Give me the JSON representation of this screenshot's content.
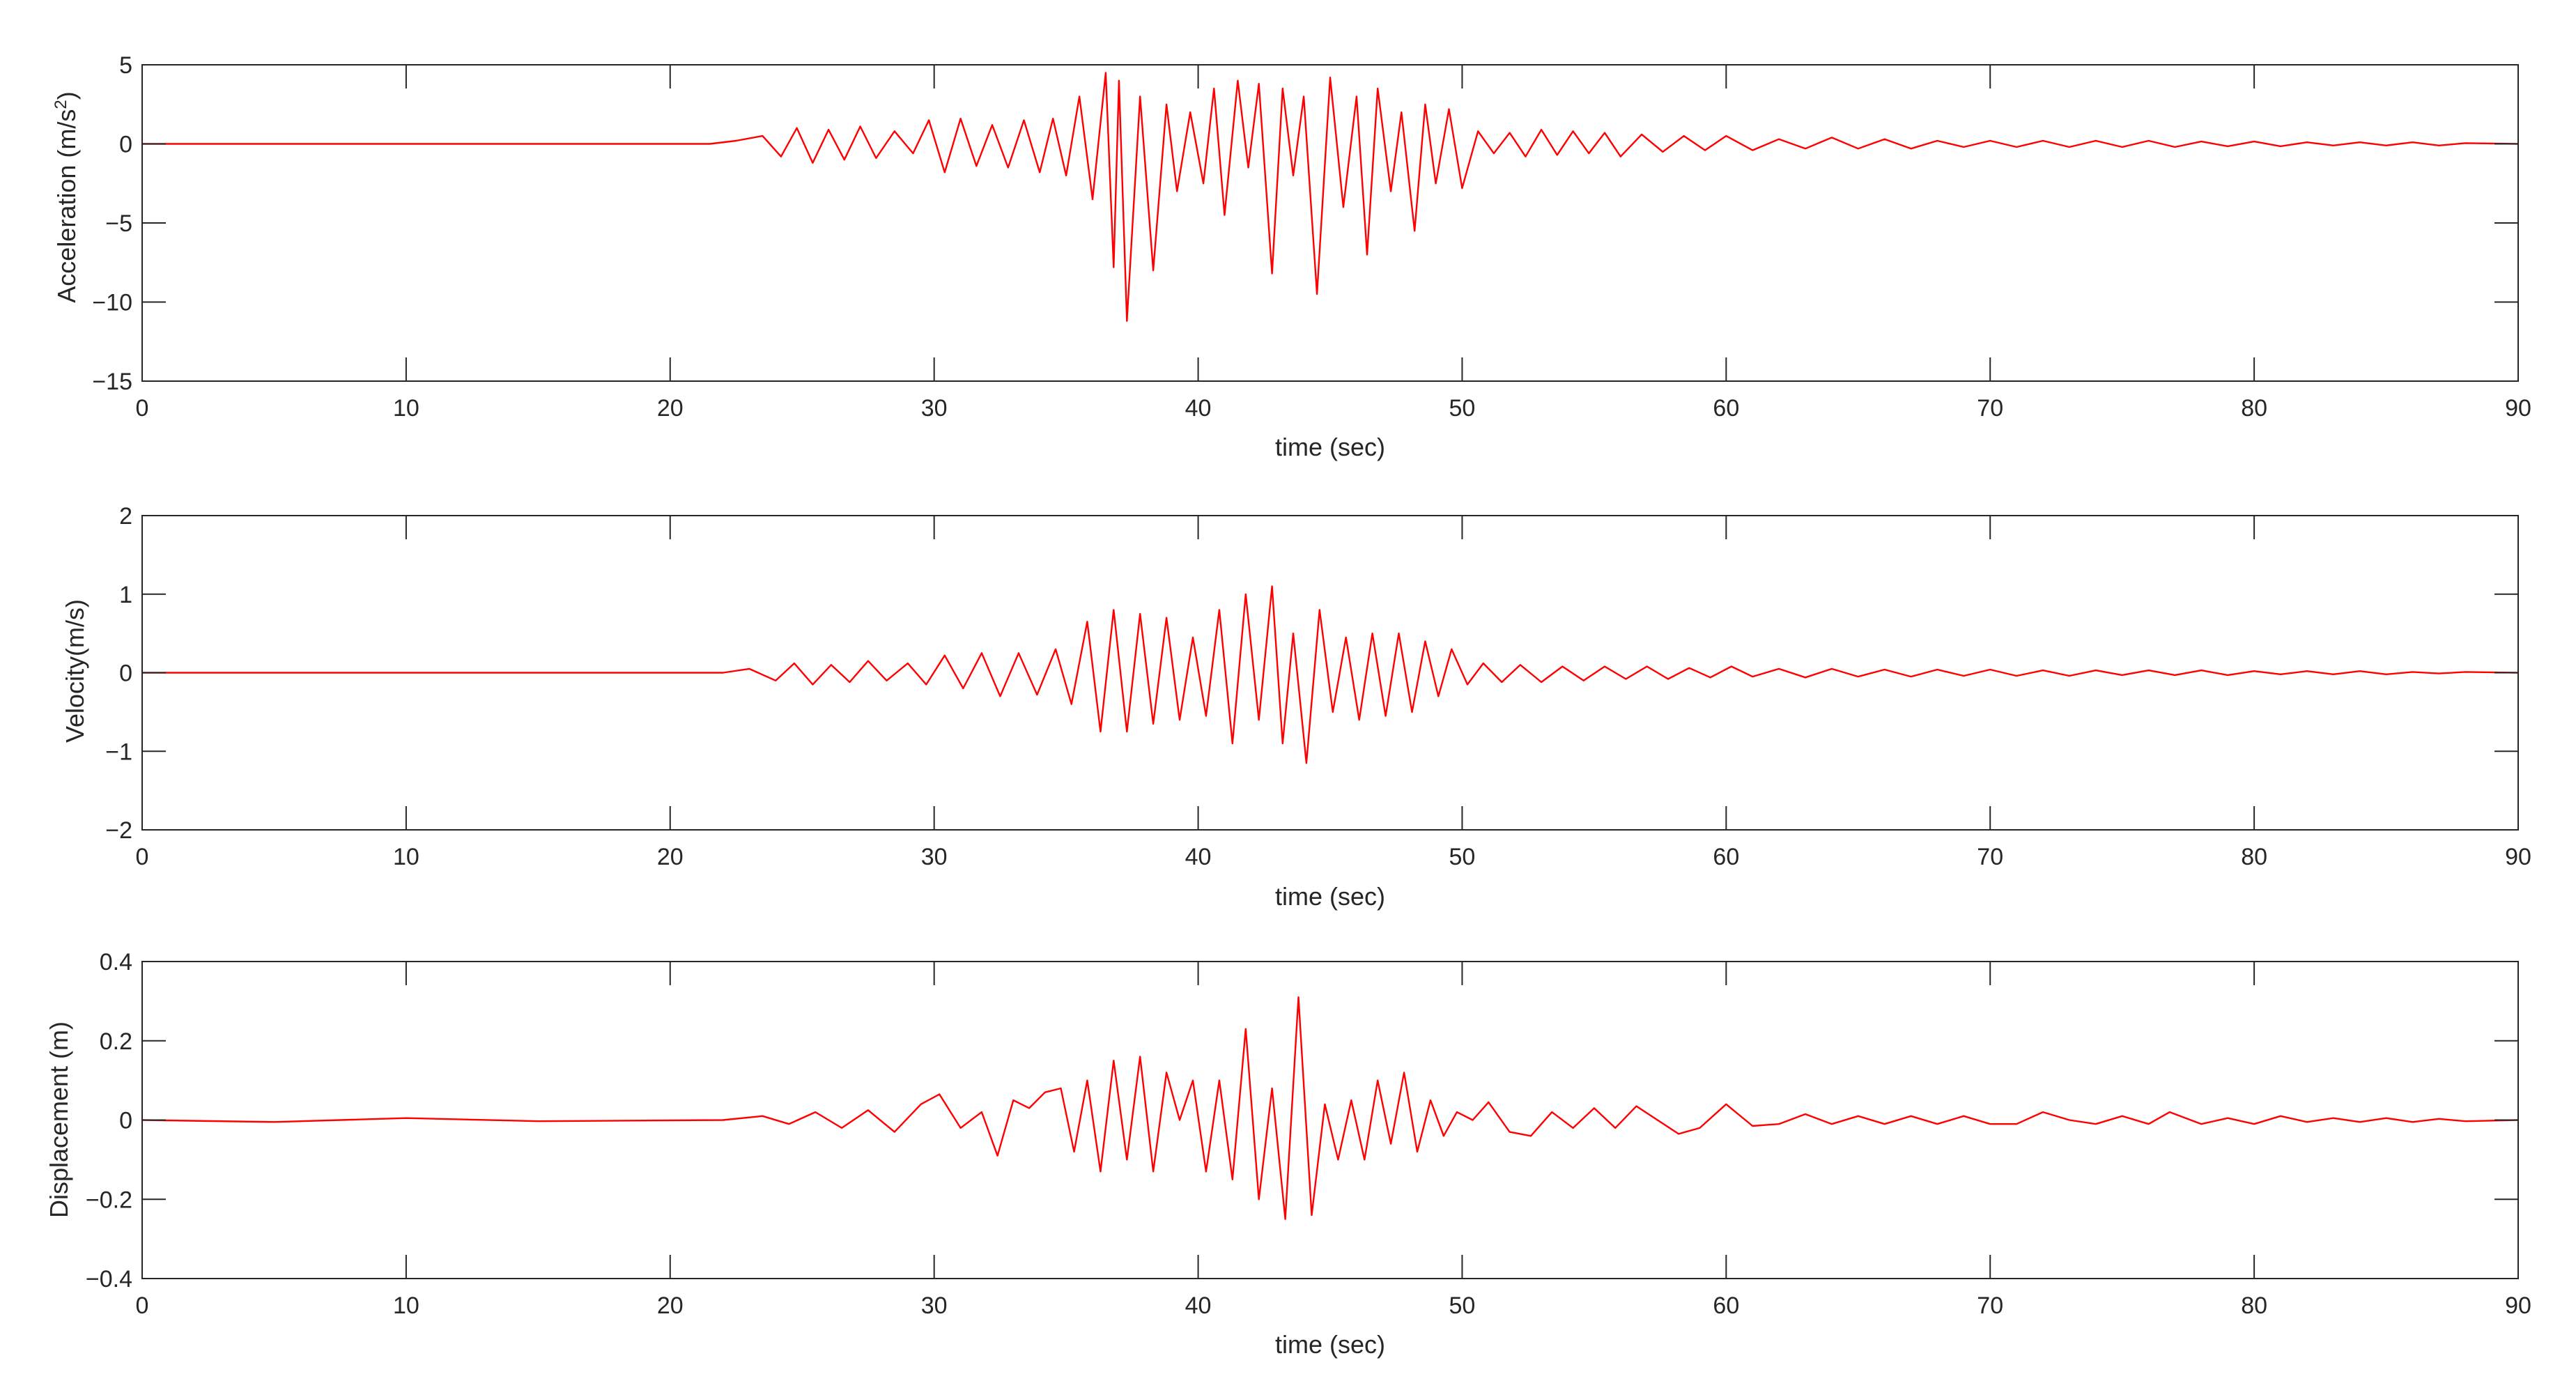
{
  "chart_data": [
    {
      "type": "line",
      "ylabel_main": "Acceleration (m/s",
      "ylabel_sup": "2",
      "ylabel_close": ")",
      "xlabel": "time (sec)",
      "xlim": [
        0,
        90
      ],
      "ylim": [
        -15,
        5
      ],
      "xticks": [
        0,
        10,
        20,
        30,
        40,
        50,
        60,
        70,
        80,
        90
      ],
      "yticks": [
        -15,
        -10,
        -5,
        0,
        5
      ],
      "series": [
        {
          "color": "#ff0000",
          "x": [
            0,
            21.5,
            22.5,
            23.5,
            24.2,
            24.8,
            25.4,
            26.0,
            26.6,
            27.2,
            27.8,
            28.5,
            29.2,
            29.8,
            30.4,
            31.0,
            31.6,
            32.2,
            32.8,
            33.4,
            34.0,
            34.5,
            35.0,
            35.5,
            36.0,
            36.5,
            36.8,
            37.0,
            37.3,
            37.8,
            38.3,
            38.8,
            39.2,
            39.7,
            40.2,
            40.6,
            41.0,
            41.5,
            41.9,
            42.3,
            42.8,
            43.2,
            43.6,
            44.0,
            44.5,
            45.0,
            45.5,
            46.0,
            46.4,
            46.8,
            47.3,
            47.7,
            48.2,
            48.6,
            49.0,
            49.5,
            50.0,
            50.6,
            51.2,
            51.8,
            52.4,
            53.0,
            53.6,
            54.2,
            54.8,
            55.4,
            56.0,
            56.8,
            57.6,
            58.4,
            59.2,
            60.0,
            61.0,
            62.0,
            63.0,
            64.0,
            65.0,
            66.0,
            67.0,
            68.0,
            69.0,
            70.0,
            71.0,
            72.0,
            73.0,
            74.0,
            75.0,
            76.0,
            77.0,
            78.0,
            79.0,
            80.0,
            81.0,
            82.0,
            83.0,
            84.0,
            85.0,
            86.0,
            87.0,
            88.0,
            90
          ],
          "y": [
            0,
            0,
            0.2,
            0.5,
            -0.8,
            1.0,
            -1.2,
            0.9,
            -1.0,
            1.1,
            -0.9,
            0.8,
            -0.6,
            1.5,
            -1.8,
            1.6,
            -1.4,
            1.2,
            -1.5,
            1.5,
            -1.8,
            1.6,
            -2.0,
            3.0,
            -3.5,
            4.5,
            -7.8,
            4.0,
            -11.2,
            3.0,
            -8.0,
            2.5,
            -3.0,
            2.0,
            -2.5,
            3.5,
            -4.5,
            4.0,
            -1.5,
            3.8,
            -8.2,
            3.5,
            -2.0,
            3.0,
            -9.5,
            4.2,
            -4.0,
            3.0,
            -7.0,
            3.5,
            -3.0,
            2.0,
            -5.5,
            2.5,
            -2.5,
            2.2,
            -2.8,
            0.8,
            -0.6,
            0.7,
            -0.8,
            0.9,
            -0.7,
            0.8,
            -0.6,
            0.7,
            -0.8,
            0.6,
            -0.5,
            0.5,
            -0.4,
            0.5,
            -0.4,
            0.3,
            -0.3,
            0.4,
            -0.3,
            0.3,
            -0.3,
            0.2,
            -0.2,
            0.2,
            -0.2,
            0.2,
            -0.2,
            0.2,
            -0.2,
            0.2,
            -0.2,
            0.15,
            -0.15,
            0.15,
            -0.15,
            0.1,
            -0.1,
            0.1,
            -0.1,
            0.1,
            -0.1,
            0.05,
            0
          ]
        }
      ]
    },
    {
      "type": "line",
      "ylabel_main": "Velocity(m/s)",
      "xlabel": "time (sec)",
      "xlim": [
        0,
        90
      ],
      "ylim": [
        -2,
        2
      ],
      "xticks": [
        0,
        10,
        20,
        30,
        40,
        50,
        60,
        70,
        80,
        90
      ],
      "yticks": [
        -2,
        -1,
        0,
        1,
        2
      ],
      "series": [
        {
          "color": "#ff0000",
          "x": [
            0,
            22.0,
            23.0,
            24.0,
            24.7,
            25.4,
            26.1,
            26.8,
            27.5,
            28.2,
            29.0,
            29.7,
            30.4,
            31.1,
            31.8,
            32.5,
            33.2,
            33.9,
            34.6,
            35.2,
            35.8,
            36.3,
            36.8,
            37.3,
            37.8,
            38.3,
            38.8,
            39.3,
            39.8,
            40.3,
            40.8,
            41.3,
            41.8,
            42.3,
            42.8,
            43.2,
            43.6,
            44.1,
            44.6,
            45.1,
            45.6,
            46.1,
            46.6,
            47.1,
            47.6,
            48.1,
            48.6,
            49.1,
            49.6,
            50.2,
            50.8,
            51.5,
            52.2,
            53.0,
            53.8,
            54.6,
            55.4,
            56.2,
            57.0,
            57.8,
            58.6,
            59.4,
            60.2,
            61.0,
            62.0,
            63.0,
            64.0,
            65.0,
            66.0,
            67.0,
            68.0,
            69.0,
            70.0,
            71.0,
            72.0,
            73.0,
            74.0,
            75.0,
            76.0,
            77.0,
            78.0,
            79.0,
            80.0,
            81.0,
            82.0,
            83.0,
            84.0,
            85.0,
            86.0,
            87.0,
            88.0,
            90
          ],
          "y": [
            0,
            0,
            0.05,
            -0.1,
            0.12,
            -0.15,
            0.1,
            -0.12,
            0.15,
            -0.1,
            0.12,
            -0.15,
            0.22,
            -0.2,
            0.25,
            -0.3,
            0.25,
            -0.28,
            0.3,
            -0.4,
            0.65,
            -0.75,
            0.8,
            -0.75,
            0.75,
            -0.65,
            0.7,
            -0.6,
            0.45,
            -0.55,
            0.8,
            -0.9,
            1.0,
            -0.6,
            1.1,
            -0.9,
            0.5,
            -1.15,
            0.8,
            -0.5,
            0.45,
            -0.6,
            0.5,
            -0.55,
            0.5,
            -0.5,
            0.4,
            -0.3,
            0.3,
            -0.15,
            0.12,
            -0.12,
            0.1,
            -0.12,
            0.08,
            -0.1,
            0.08,
            -0.08,
            0.08,
            -0.08,
            0.06,
            -0.06,
            0.08,
            -0.05,
            0.05,
            -0.06,
            0.05,
            -0.05,
            0.04,
            -0.05,
            0.04,
            -0.04,
            0.04,
            -0.04,
            0.03,
            -0.04,
            0.03,
            -0.03,
            0.03,
            -0.03,
            0.03,
            -0.03,
            0.02,
            -0.02,
            0.02,
            -0.02,
            0.02,
            -0.02,
            0.01,
            -0.01,
            0.01,
            0
          ]
        }
      ]
    },
    {
      "type": "line",
      "ylabel_main": "Displacement (m)",
      "xlabel": "time (sec)",
      "xlim": [
        0,
        90
      ],
      "ylim": [
        -0.4,
        0.4
      ],
      "xticks": [
        0,
        10,
        20,
        30,
        40,
        50,
        60,
        70,
        80,
        90
      ],
      "yticks": [
        -0.4,
        -0.2,
        0,
        0.2,
        0.4
      ],
      "series": [
        {
          "color": "#ff0000",
          "x": [
            0,
            5.0,
            10.0,
            15.0,
            22.0,
            23.5,
            24.5,
            25.5,
            26.5,
            27.5,
            28.5,
            29.5,
            30.2,
            31.0,
            31.8,
            32.4,
            33.0,
            33.6,
            34.2,
            34.8,
            35.3,
            35.8,
            36.3,
            36.8,
            37.3,
            37.8,
            38.3,
            38.8,
            39.3,
            39.8,
            40.3,
            40.8,
            41.3,
            41.8,
            42.3,
            42.8,
            43.3,
            43.8,
            44.3,
            44.8,
            45.3,
            45.8,
            46.3,
            46.8,
            47.3,
            47.8,
            48.3,
            48.8,
            49.3,
            49.8,
            50.4,
            51.0,
            51.8,
            52.6,
            53.4,
            54.2,
            55.0,
            55.8,
            56.6,
            57.4,
            58.2,
            59.0,
            60.0,
            61.0,
            62.0,
            63.0,
            64.0,
            65.0,
            66.0,
            67.0,
            68.0,
            69.0,
            70.0,
            71.0,
            72.0,
            73.0,
            74.0,
            75.0,
            76.0,
            76.8,
            78.0,
            79.0,
            80.0,
            81.0,
            82.0,
            83.0,
            84.0,
            85.0,
            86.0,
            87.0,
            88.0,
            90
          ],
          "y": [
            0,
            -0.005,
            0.005,
            -0.003,
            0,
            0.01,
            -0.01,
            0.02,
            -0.02,
            0.025,
            -0.03,
            0.04,
            0.065,
            -0.02,
            0.02,
            -0.09,
            0.05,
            0.03,
            0.07,
            0.08,
            -0.08,
            0.1,
            -0.13,
            0.15,
            -0.1,
            0.16,
            -0.13,
            0.12,
            0.0,
            0.1,
            -0.13,
            0.1,
            -0.15,
            0.23,
            -0.2,
            0.08,
            -0.25,
            0.31,
            -0.24,
            0.04,
            -0.1,
            0.05,
            -0.1,
            0.1,
            -0.06,
            0.12,
            -0.08,
            0.05,
            -0.04,
            0.02,
            0.0,
            0.045,
            -0.03,
            -0.04,
            0.02,
            -0.02,
            0.03,
            -0.02,
            0.035,
            0.0,
            -0.035,
            -0.02,
            0.04,
            -0.015,
            -0.01,
            0.015,
            -0.01,
            0.01,
            -0.01,
            0.01,
            -0.01,
            0.01,
            -0.01,
            -0.01,
            0.02,
            0.0,
            -0.01,
            0.01,
            -0.01,
            0.02,
            -0.01,
            0.005,
            -0.01,
            0.01,
            -0.005,
            0.005,
            -0.005,
            0.005,
            -0.005,
            0.003,
            -0.003,
            0
          ]
        }
      ]
    }
  ]
}
